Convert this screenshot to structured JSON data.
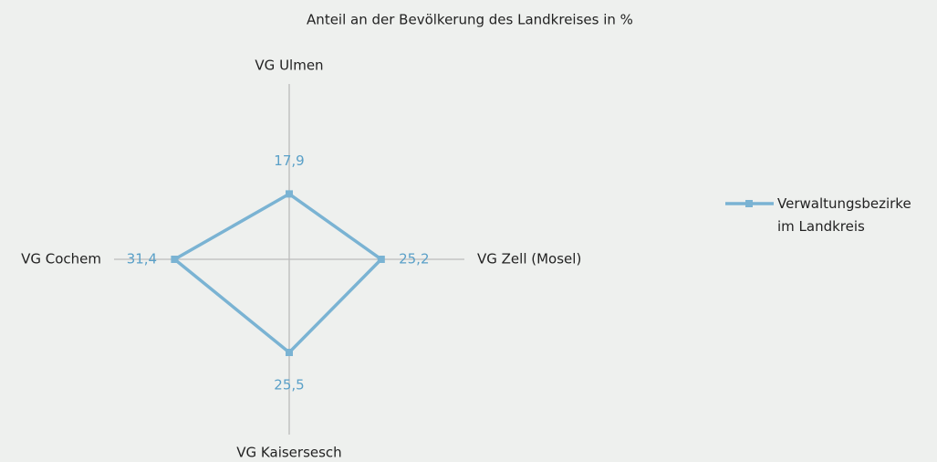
{
  "chart_data": {
    "type": "radar",
    "title": "Anteil an der Bevölkerung des Landkreises in %",
    "categories": [
      "VG Ulmen",
      "VG Zell (Mosel)",
      "VG Kaisersesch",
      "VG Cochem"
    ],
    "series": [
      {
        "name": "Verwaltungsbezirke im Landkreis",
        "color": "#7ab3d3",
        "values": [
          17.9,
          25.2,
          25.5,
          31.4
        ],
        "value_labels": [
          "17,9",
          "25,2",
          "25,5",
          "31,4"
        ]
      }
    ],
    "ylim": [
      0,
      48
    ],
    "legend": "right"
  }
}
